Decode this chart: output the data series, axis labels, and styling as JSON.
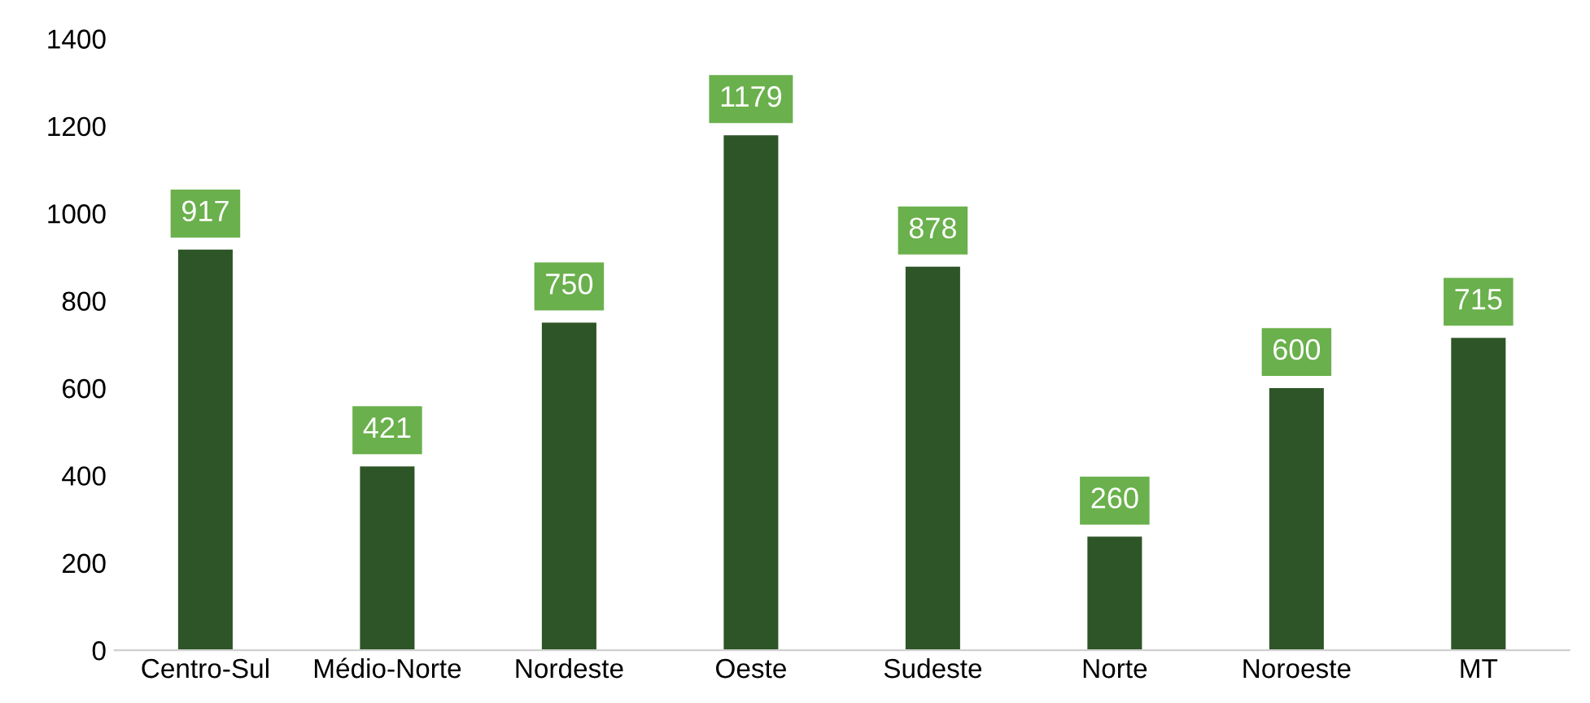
{
  "chart_data": {
    "type": "bar",
    "categories": [
      "Centro-Sul",
      "Médio-Norte",
      "Nordeste",
      "Oeste",
      "Sudeste",
      "Norte",
      "Noroeste",
      "MT"
    ],
    "values": [
      917,
      421,
      750,
      1179,
      878,
      260,
      600,
      715
    ],
    "color": "#2e5527",
    "ylim": [
      0,
      1400
    ],
    "yticks": [
      0,
      200,
      400,
      600,
      800,
      1000,
      1200,
      1400
    ],
    "grid": false,
    "data_labels": true
  }
}
